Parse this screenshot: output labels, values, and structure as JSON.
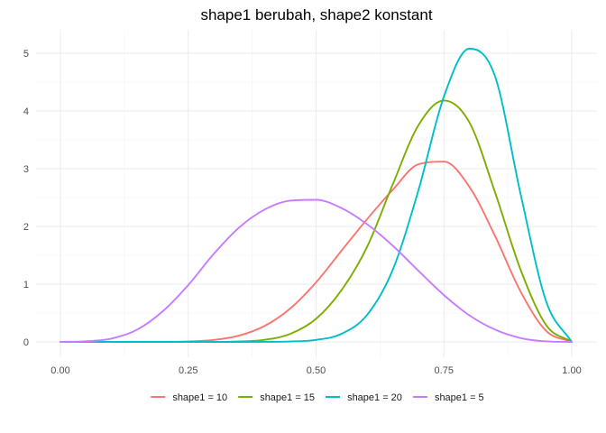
{
  "chart_data": {
    "type": "line",
    "title": "shape1 berubah, shape2 konstant",
    "xlabel": "",
    "ylabel": "",
    "xlim": [
      0,
      1
    ],
    "ylim": [
      0,
      5.2
    ],
    "x_ticks": [
      0,
      0.25,
      0.5,
      0.75,
      1
    ],
    "x_tick_labels": [
      "0.00",
      "0.25",
      "0.50",
      "0.75",
      "1.00"
    ],
    "y_ticks": [
      0,
      1,
      2,
      3,
      4,
      5
    ],
    "y_tick_labels": [
      "0",
      "1",
      "2",
      "3",
      "4",
      "5"
    ],
    "grid": true,
    "legend_position": "bottom",
    "x": [
      0,
      0.05,
      0.1,
      0.15,
      0.2,
      0.25,
      0.3,
      0.35,
      0.4,
      0.45,
      0.5,
      0.55,
      0.6,
      0.65,
      0.7,
      0.75,
      0.8,
      0.85,
      0.9,
      0.95,
      1.0
    ],
    "series": [
      {
        "name": "shape1 = 10",
        "color": "#F8766D",
        "values": [
          0,
          0,
          0,
          0,
          0.001,
          0.008,
          0.034,
          0.11,
          0.279,
          0.582,
          1.031,
          1.582,
          2.128,
          2.635,
          3.076,
          3.122,
          2.684,
          1.835,
          0.872,
          0.19,
          0
        ]
      },
      {
        "name": "shape1 = 15",
        "color": "#7CAE00",
        "values": [
          0,
          0,
          0,
          0,
          0,
          0,
          0.001,
          0.008,
          0.037,
          0.14,
          0.4,
          0.9,
          1.65,
          2.73,
          3.75,
          4.18,
          3.8,
          2.59,
          1.25,
          0.29,
          0
        ]
      },
      {
        "name": "shape1 = 20",
        "color": "#00BFC4",
        "values": [
          0,
          0,
          0,
          0,
          0,
          0,
          0,
          0,
          0.001,
          0.007,
          0.035,
          0.14,
          0.47,
          1.25,
          2.62,
          4.25,
          5.08,
          4.6,
          2.56,
          0.7,
          0
        ]
      },
      {
        "name": "shape1 = 5",
        "color": "#C77CFF",
        "values": [
          0,
          0.01,
          0.058,
          0.212,
          0.529,
          0.985,
          1.525,
          1.985,
          2.296,
          2.446,
          2.461,
          2.317,
          2.037,
          1.666,
          1.233,
          0.811,
          0.459,
          0.212,
          0.066,
          0.009,
          0
        ]
      }
    ]
  }
}
